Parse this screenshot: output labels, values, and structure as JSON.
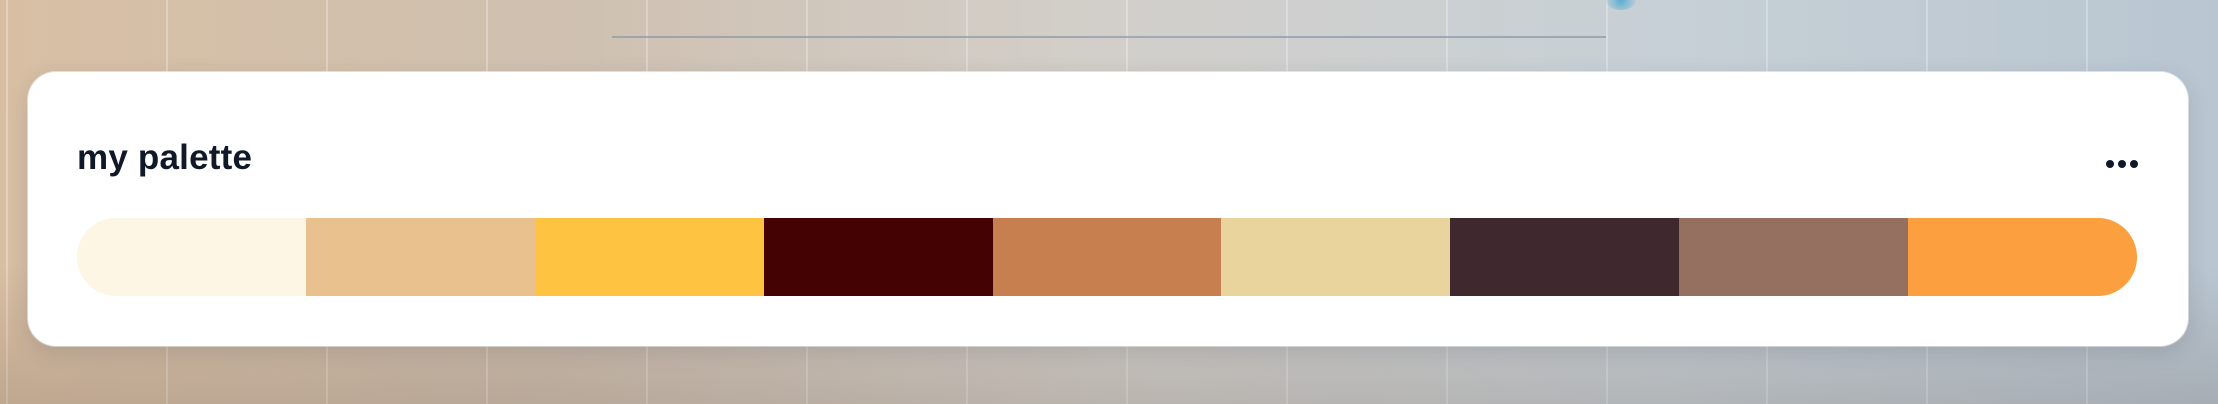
{
  "background": {
    "gradient_start": "#d8bfa4",
    "gradient_end": "#b9c6d1"
  },
  "card": {
    "title": "my palette",
    "menu_icon": "more-horizontal-icon"
  },
  "palette": {
    "swatches": [
      {
        "color": "#fdf6e5"
      },
      {
        "color": "#e8c18e"
      },
      {
        "color": "#fec340"
      },
      {
        "color": "#450202"
      },
      {
        "color": "#c87f4f"
      },
      {
        "color": "#e8d49c"
      },
      {
        "color": "#40282f"
      },
      {
        "color": "#957060"
      },
      {
        "color": "#fb9f3f"
      }
    ]
  }
}
